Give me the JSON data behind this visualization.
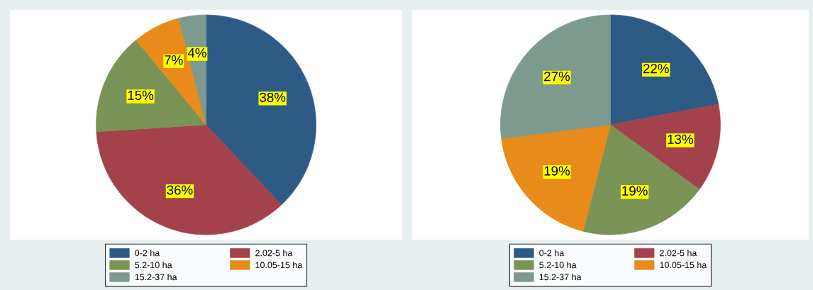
{
  "chart_data": [
    {
      "type": "pie",
      "categories": [
        "0-2 ha",
        "2.02-5 ha",
        "5.2-10 ha",
        "10.05-15 ha",
        "15.2-37 ha"
      ],
      "values": [
        38,
        36,
        15,
        7,
        4
      ],
      "value_labels": [
        "38%",
        "36%",
        "15%",
        "7%",
        "4%"
      ],
      "colors": [
        "#2e5b86",
        "#a4424c",
        "#7a9458",
        "#e88b1a",
        "#7c9a8d"
      ],
      "legend": "bottom"
    },
    {
      "type": "pie",
      "categories": [
        "0-2 ha",
        "2.02-5 ha",
        "5.2-10 ha",
        "10.05-15 ha",
        "15.2-37 ha"
      ],
      "values": [
        22,
        13,
        19,
        19,
        27
      ],
      "value_labels": [
        "22%",
        "13%",
        "19%",
        "19%",
        "27%"
      ],
      "colors": [
        "#2e5b86",
        "#a4424c",
        "#7a9458",
        "#e88b1a",
        "#7c9a8d"
      ],
      "legend": "bottom"
    }
  ]
}
